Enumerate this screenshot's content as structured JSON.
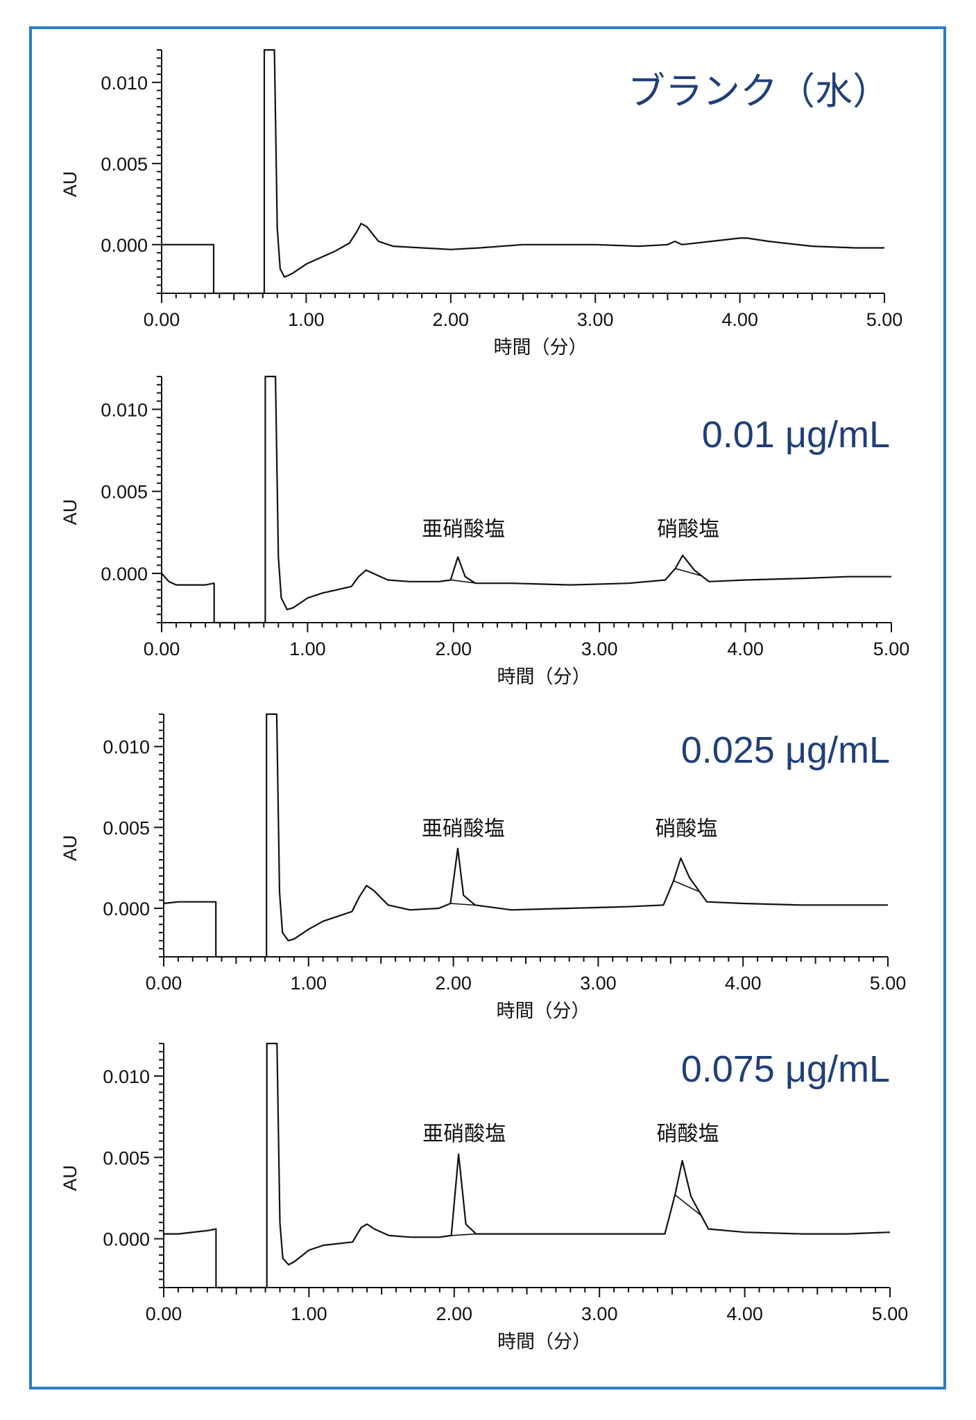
{
  "chart_data": [
    {
      "type": "line",
      "title": "ブランク（水）",
      "xlabel": "時間（分）",
      "ylabel": "AU",
      "xlim": [
        0,
        5
      ],
      "ylim": [
        -0.003,
        0.012
      ],
      "x_ticks": [
        "0.00",
        "1.00",
        "2.00",
        "3.00",
        "4.00",
        "5.00"
      ],
      "y_ticks": [
        "0.000",
        "0.005",
        "0.010"
      ],
      "series": [
        {
          "x": [
            0.0,
            0.2,
            0.36,
            0.36,
            0.71,
            0.71,
            0.78,
            0.8,
            0.82,
            0.85,
            0.9,
            1.0,
            1.1,
            1.2,
            1.3,
            1.35,
            1.38,
            1.42,
            1.5,
            1.6,
            1.8,
            2.0,
            2.2,
            2.5,
            3.0,
            3.3,
            3.5,
            3.55,
            3.6,
            3.8,
            4.0,
            4.05,
            4.2,
            4.5,
            4.8,
            5.0
          ],
          "y": [
            0.0,
            0.0,
            0.0,
            -0.003,
            -0.003,
            0.012,
            0.012,
            0.001,
            -0.0015,
            -0.002,
            -0.0018,
            -0.0012,
            -0.0008,
            -0.0004,
            0.0001,
            0.0008,
            0.0013,
            0.0011,
            0.0002,
            -0.0001,
            -0.0002,
            -0.0003,
            -0.0002,
            0.0,
            0.0,
            -0.0001,
            0.0,
            0.0002,
            0.0,
            0.0002,
            0.0004,
            0.0004,
            0.0002,
            -0.0001,
            -0.0002,
            -0.0002
          ]
        }
      ]
    },
    {
      "type": "line",
      "title": "0.01 μg/mL",
      "xlabel": "時間（分）",
      "ylabel": "AU",
      "xlim": [
        0,
        5
      ],
      "ylim": [
        -0.003,
        0.012
      ],
      "x_ticks": [
        "0.00",
        "1.00",
        "2.00",
        "3.00",
        "4.00",
        "5.00"
      ],
      "y_ticks": [
        "0.000",
        "0.005",
        "0.010"
      ],
      "peak_labels": [
        {
          "text": "亜硝酸塩",
          "x": 2.03
        },
        {
          "text": "硝酸塩",
          "x": 3.57
        }
      ],
      "series": [
        {
          "x": [
            0.0,
            0.05,
            0.1,
            0.3,
            0.36,
            0.36,
            0.71,
            0.71,
            0.78,
            0.8,
            0.82,
            0.86,
            0.9,
            1.0,
            1.1,
            1.2,
            1.3,
            1.35,
            1.4,
            1.45,
            1.55,
            1.7,
            1.9,
            1.98,
            2.03,
            2.08,
            2.15,
            2.4,
            2.8,
            3.2,
            3.45,
            3.52,
            3.57,
            3.65,
            3.75,
            4.0,
            4.4,
            4.7,
            5.0
          ],
          "y": [
            0.0,
            -0.0005,
            -0.0007,
            -0.0007,
            -0.0006,
            -0.003,
            -0.003,
            0.012,
            0.012,
            0.001,
            -0.0015,
            -0.0022,
            -0.0021,
            -0.0015,
            -0.0012,
            -0.001,
            -0.0008,
            -0.0002,
            0.0002,
            0.0,
            -0.0004,
            -0.0005,
            -0.0005,
            -0.0004,
            0.001,
            -0.0002,
            -0.0006,
            -0.0006,
            -0.0007,
            -0.0006,
            -0.0004,
            0.0003,
            0.0011,
            0.0002,
            -0.0005,
            -0.0004,
            -0.0003,
            -0.0002,
            -0.0002
          ]
        }
      ]
    },
    {
      "type": "line",
      "title": "0.025 μg/mL",
      "xlabel": "時間（分）",
      "ylabel": "AU",
      "xlim": [
        0,
        5
      ],
      "ylim": [
        -0.003,
        0.012
      ],
      "x_ticks": [
        "0.00",
        "1.00",
        "2.00",
        "3.00",
        "4.00",
        "5.00"
      ],
      "y_ticks": [
        "0.000",
        "0.005",
        "0.010"
      ],
      "peak_labels": [
        {
          "text": "亜硝酸塩",
          "x": 2.03
        },
        {
          "text": "硝酸塩",
          "x": 3.57
        }
      ],
      "series": [
        {
          "x": [
            0.0,
            0.1,
            0.3,
            0.36,
            0.36,
            0.71,
            0.71,
            0.78,
            0.8,
            0.82,
            0.86,
            0.9,
            1.0,
            1.1,
            1.2,
            1.3,
            1.35,
            1.4,
            1.45,
            1.55,
            1.7,
            1.9,
            1.98,
            2.03,
            2.07,
            2.15,
            2.4,
            2.8,
            3.2,
            3.45,
            3.52,
            3.57,
            3.63,
            3.75,
            4.0,
            4.4,
            4.7,
            5.0
          ],
          "y": [
            0.0003,
            0.0004,
            0.0004,
            0.0004,
            -0.003,
            -0.003,
            0.012,
            0.012,
            0.001,
            -0.0015,
            -0.002,
            -0.0019,
            -0.0013,
            -0.0008,
            -0.0005,
            -0.0002,
            0.0007,
            0.0014,
            0.0011,
            0.0002,
            -0.0001,
            0.0,
            0.0003,
            0.0037,
            0.0008,
            0.0002,
            -0.0001,
            0.0,
            0.0001,
            0.0002,
            0.0017,
            0.0031,
            0.0019,
            0.0004,
            0.0003,
            0.0002,
            0.0002,
            0.0002
          ]
        }
      ]
    },
    {
      "type": "line",
      "title": "0.075 μg/mL",
      "xlabel": "時間（分）",
      "ylabel": "AU",
      "xlim": [
        0,
        5
      ],
      "ylim": [
        -0.003,
        0.012
      ],
      "x_ticks": [
        "0.00",
        "1.00",
        "2.00",
        "3.00",
        "4.00",
        "5.00"
      ],
      "y_ticks": [
        "0.000",
        "0.005",
        "0.010"
      ],
      "peak_labels": [
        {
          "text": "亜硝酸塩",
          "x": 2.03
        },
        {
          "text": "硝酸塩",
          "x": 3.57
        }
      ],
      "series": [
        {
          "x": [
            0.0,
            0.1,
            0.3,
            0.36,
            0.36,
            0.71,
            0.71,
            0.78,
            0.8,
            0.82,
            0.86,
            0.9,
            1.0,
            1.1,
            1.2,
            1.3,
            1.36,
            1.4,
            1.45,
            1.55,
            1.7,
            1.9,
            1.98,
            2.03,
            2.08,
            2.15,
            2.4,
            2.8,
            3.2,
            3.45,
            3.52,
            3.57,
            3.63,
            3.75,
            4.0,
            4.4,
            4.7,
            5.0
          ],
          "y": [
            0.0003,
            0.0003,
            0.0005,
            0.0006,
            -0.003,
            -0.003,
            0.012,
            0.012,
            0.001,
            -0.0012,
            -0.0016,
            -0.0014,
            -0.0007,
            -0.0004,
            -0.0003,
            -0.0002,
            0.0007,
            0.0009,
            0.0006,
            0.0002,
            0.0001,
            0.0001,
            0.0002,
            0.0052,
            0.0009,
            0.0003,
            0.0003,
            0.0003,
            0.0003,
            0.0003,
            0.0027,
            0.0048,
            0.0026,
            0.0006,
            0.0004,
            0.0003,
            0.0003,
            0.0004
          ]
        }
      ]
    }
  ]
}
